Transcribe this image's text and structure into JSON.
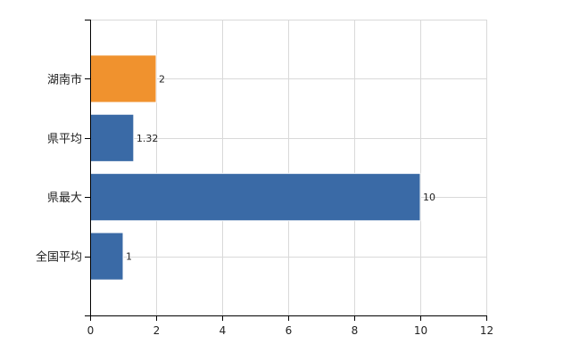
{
  "chart_data": {
    "type": "bar",
    "orientation": "horizontal",
    "categories": [
      "湖南市",
      "県平均",
      "県最大",
      "全国平均"
    ],
    "values": [
      2,
      1.32,
      10,
      1
    ],
    "value_labels": [
      "2",
      "1.32",
      "10",
      "1"
    ],
    "bar_colors": [
      "#f0922e",
      "#3a6aa6",
      "#3a6aa6",
      "#3a6aa6"
    ],
    "bar_stroke": "#ffffff",
    "xlim": [
      0,
      12
    ],
    "x_ticks": [
      0,
      2,
      4,
      6,
      8,
      10,
      12
    ],
    "x_tick_labels": [
      "0",
      "2",
      "4",
      "6",
      "8",
      "10",
      "12"
    ],
    "grid": true,
    "grid_color": "#d9d9d9",
    "axis_color": "#000000",
    "legend": "none"
  }
}
